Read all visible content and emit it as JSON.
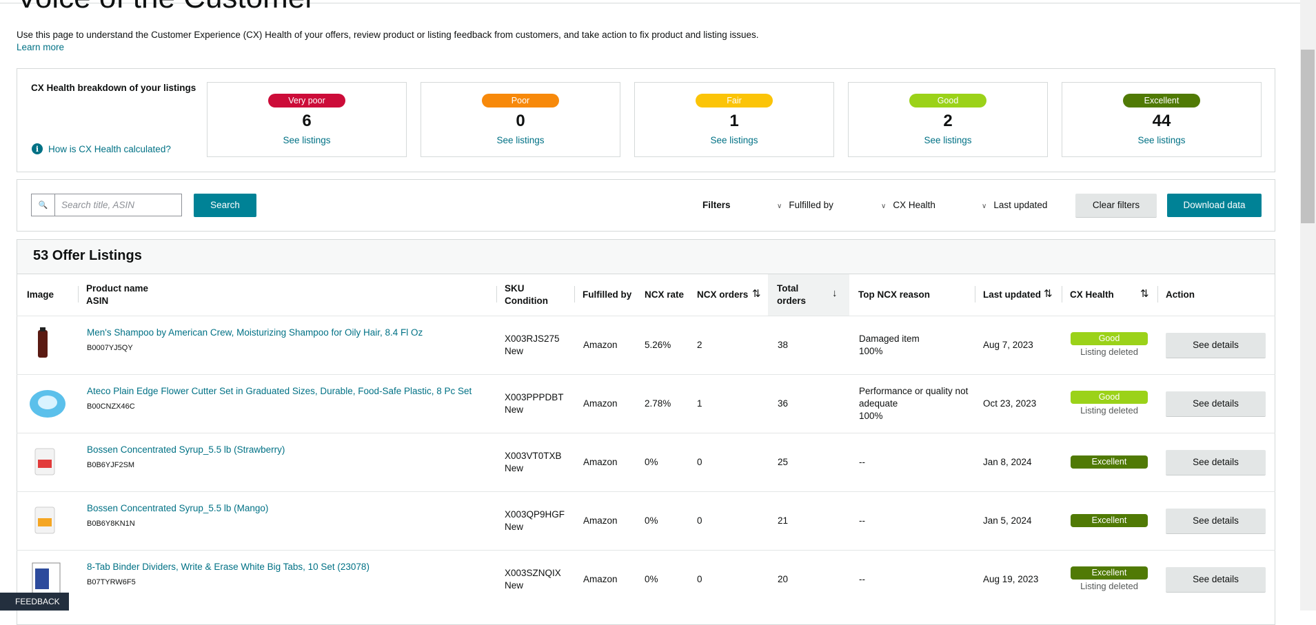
{
  "header": {
    "title": "Voice of the Customer",
    "description": "Use this page to understand the Customer Experience (CX) Health of your offers, review product or listing feedback from customers, and take action to fix product and listing issues.",
    "learn_more": "Learn more"
  },
  "breakdown": {
    "title": "CX Health breakdown of your listings",
    "help": "How is CX Health calculated?",
    "cards": [
      {
        "label": "Very poor",
        "count": 6,
        "link": "See listings"
      },
      {
        "label": "Poor",
        "count": 0,
        "link": "See listings"
      },
      {
        "label": "Fair",
        "count": 1,
        "link": "See listings"
      },
      {
        "label": "Good",
        "count": 2,
        "link": "See listings"
      },
      {
        "label": "Excellent",
        "count": 44,
        "link": "See listings"
      }
    ]
  },
  "search": {
    "placeholder": "Search title, ASIN",
    "button": "Search",
    "filters_label": "Filters",
    "filters": [
      "Fulfilled by",
      "CX Health",
      "Last updated"
    ],
    "clear": "Clear filters",
    "download": "Download data"
  },
  "table": {
    "title": "53 Offer Listings",
    "columns": [
      [
        "Image"
      ],
      [
        "Product name",
        "ASIN"
      ],
      [
        "SKU",
        "Condition"
      ],
      [
        "Fulfilled by"
      ],
      [
        "NCX rate"
      ],
      [
        "NCX orders"
      ],
      [
        "Total",
        "orders"
      ],
      [
        "Top NCX reason"
      ],
      [
        "Last updated"
      ],
      [
        "CX Health"
      ],
      [
        "Action"
      ]
    ],
    "rows": [
      {
        "product": "Men's Shampoo by American Crew, Moisturizing Shampoo for Oily Hair, 8.4 Fl Oz",
        "asin": "B0007YJ5QY",
        "sku": "X003RJS275",
        "condition": "New",
        "fulfilled": "Amazon",
        "ncx_rate": "5.26%",
        "ncx_orders": 2,
        "total_orders": 38,
        "reason": "Damaged item",
        "reason_pct": "100%",
        "last_updated": "Aug 7, 2023",
        "health": "Good",
        "status": "Listing deleted",
        "action": "See details"
      },
      {
        "product": "Ateco Plain Edge Flower Cutter Set in Graduated Sizes, Durable, Food-Safe Plastic, 8 Pc Set",
        "asin": "B00CNZX46C",
        "sku": "X003PPPDBT",
        "condition": "New",
        "fulfilled": "Amazon",
        "ncx_rate": "2.78%",
        "ncx_orders": 1,
        "total_orders": 36,
        "reason": "Performance or quality not adequate",
        "reason_pct": "100%",
        "last_updated": "Oct 23, 2023",
        "health": "Good",
        "status": "Listing deleted",
        "action": "See details"
      },
      {
        "product": "Bossen Concentrated Syrup_5.5 lb (Strawberry)",
        "asin": "B0B6YJF2SM",
        "sku": "X003VT0TXB",
        "condition": "New",
        "fulfilled": "Amazon",
        "ncx_rate": "0%",
        "ncx_orders": 0,
        "total_orders": 25,
        "reason": "--",
        "last_updated": "Jan 8, 2024",
        "health": "Excellent",
        "action": "See details"
      },
      {
        "product": "Bossen Concentrated Syrup_5.5 lb (Mango)",
        "asin": "B0B6Y8KN1N",
        "sku": "X003QP9HGF",
        "condition": "New",
        "fulfilled": "Amazon",
        "ncx_rate": "0%",
        "ncx_orders": 0,
        "total_orders": 21,
        "reason": "--",
        "last_updated": "Jan 5, 2024",
        "health": "Excellent",
        "action": "See details"
      },
      {
        "product": "8-Tab Binder Dividers, Write & Erase White Big Tabs, 10 Set (23078)",
        "asin": "B07TYRW6F5",
        "sku": "X003SZNQIX",
        "condition": "New",
        "fulfilled": "Amazon",
        "ncx_rate": "0%",
        "ncx_orders": 0,
        "total_orders": 20,
        "reason": "--",
        "last_updated": "Aug 19, 2023",
        "health": "Excellent",
        "status": "Listing deleted",
        "action": "See details"
      }
    ]
  },
  "feedback": "FEEDBACK"
}
